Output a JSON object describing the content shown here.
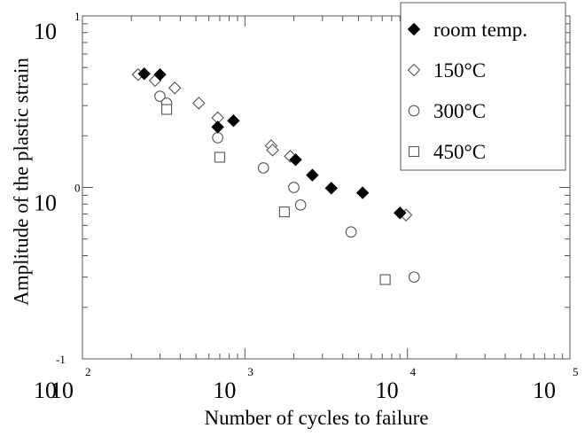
{
  "chart_data": {
    "type": "scatter",
    "xlabel": "Number of cycles to failure",
    "ylabel": "Amplitude of the plastic strain",
    "xscale": "log",
    "yscale": "log",
    "xlim": [
      100,
      100000
    ],
    "ylim": [
      0.1,
      10
    ],
    "x_ticks": [
      {
        "base": "10",
        "exp": "2"
      },
      {
        "base": "10",
        "exp": "3"
      },
      {
        "base": "10",
        "exp": "4"
      },
      {
        "base": "10",
        "exp": "5"
      }
    ],
    "y_ticks": [
      {
        "base": "10",
        "exp": "1"
      },
      {
        "base": "10",
        "exp": "0"
      },
      {
        "base": "10",
        "exp": "-1"
      }
    ],
    "grid": false,
    "legend_position": "top-right",
    "series": [
      {
        "name": "room temp.",
        "marker": "diamond-filled",
        "color": "#000000",
        "points": [
          [
            240,
            4.6
          ],
          [
            300,
            4.55
          ],
          [
            680,
            2.25
          ],
          [
            850,
            2.45
          ],
          [
            2050,
            1.45
          ],
          [
            2600,
            1.18
          ],
          [
            3400,
            0.99
          ],
          [
            5300,
            0.93
          ],
          [
            9000,
            0.71
          ]
        ]
      },
      {
        "name": "150°C",
        "marker": "diamond-open",
        "color": "#555555",
        "points": [
          [
            220,
            4.55
          ],
          [
            280,
            4.2
          ],
          [
            370,
            3.8
          ],
          [
            520,
            3.1
          ],
          [
            680,
            2.55
          ],
          [
            1450,
            1.75
          ],
          [
            1480,
            1.65
          ],
          [
            1900,
            1.52
          ],
          [
            9800,
            0.69
          ]
        ]
      },
      {
        "name": "300°C",
        "marker": "circle-open",
        "color": "#555555",
        "points": [
          [
            300,
            3.4
          ],
          [
            330,
            3.1
          ],
          [
            680,
            1.95
          ],
          [
            1300,
            1.3
          ],
          [
            2000,
            1.0
          ],
          [
            2200,
            0.79
          ],
          [
            4500,
            0.55
          ],
          [
            11000,
            0.3
          ]
        ]
      },
      {
        "name": "450°C",
        "marker": "square-open",
        "color": "#555555",
        "points": [
          [
            330,
            2.85
          ],
          [
            700,
            1.5
          ],
          [
            1750,
            0.72
          ],
          [
            7300,
            0.29
          ]
        ]
      }
    ]
  }
}
